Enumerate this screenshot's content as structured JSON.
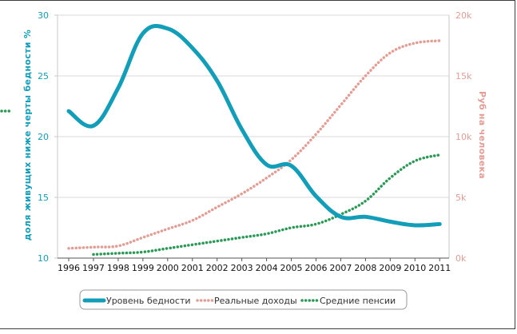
{
  "chart_data": {
    "type": "line",
    "x": [
      1996,
      1997,
      1998,
      1999,
      2000,
      2001,
      2002,
      2003,
      2004,
      2005,
      2006,
      2007,
      2008,
      2009,
      2010,
      2011
    ],
    "x_tick_labels": [
      "1996",
      "1997",
      "1998",
      "1999",
      "2000",
      "2001",
      "2002",
      "2003",
      "2004",
      "2005",
      "2006",
      "2007",
      "2008",
      "2009",
      "2010",
      "2011"
    ],
    "ylabel_left": "доля живущих ниже черты бедности %",
    "ylabel_right": "Руб на человека",
    "ylim_left": [
      10,
      30
    ],
    "ylim_right": [
      0,
      20000
    ],
    "left_ticks": [
      "10",
      "15",
      "20",
      "25",
      "30"
    ],
    "right_ticks": [
      "0k",
      "5k",
      "10k",
      "15k",
      "20k"
    ],
    "grid": true,
    "legend_position": "bottom",
    "series": [
      {
        "name": "Уровень бедности",
        "axis": "left",
        "color": "#129db8",
        "style": "solid",
        "values": [
          22.1,
          20.9,
          24.0,
          28.5,
          28.9,
          27.3,
          24.6,
          20.6,
          17.7,
          17.6,
          15.1,
          13.4,
          13.4,
          13.0,
          12.7,
          12.8
        ]
      },
      {
        "name": "Реальные доходы",
        "axis": "right",
        "color": "#e39d95",
        "style": "dotted",
        "values": [
          800,
          900,
          1000,
          1700,
          2400,
          3100,
          4200,
          5300,
          6600,
          8100,
          10200,
          12600,
          15000,
          16900,
          17700,
          17900
        ]
      },
      {
        "name": "Средние пенсии",
        "axis": "right",
        "color": "#2a9a56",
        "style": "dotted",
        "values": [
          null,
          300,
          400,
          500,
          800,
          1100,
          1400,
          1700,
          2000,
          2500,
          2800,
          3600,
          4700,
          6600,
          8000,
          8500
        ]
      }
    ]
  }
}
